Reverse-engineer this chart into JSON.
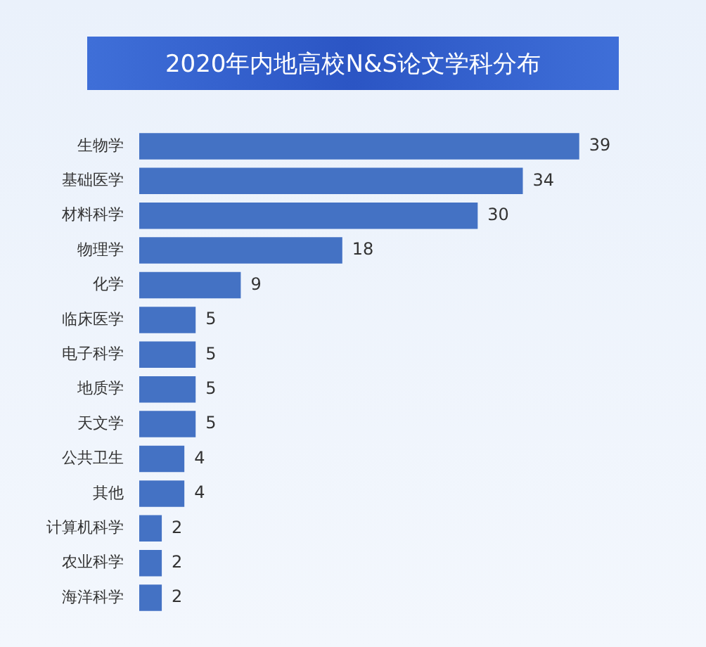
{
  "chart_data": {
    "type": "bar",
    "orientation": "horizontal",
    "title": "2020年内地高校N&S论文学科分布",
    "categories": [
      "生物学",
      "基础医学",
      "材料科学",
      "物理学",
      "化学",
      "临床医学",
      "电子科学",
      "地质学",
      "天文学",
      "公共卫生",
      "其他",
      "计算机科学",
      "农业科学",
      "海洋科学"
    ],
    "values": [
      39,
      34,
      30,
      18,
      9,
      5,
      5,
      5,
      5,
      4,
      4,
      2,
      2,
      2
    ],
    "color": "#4472c4",
    "data_labels": true,
    "legend": false,
    "tick_labels": "y"
  }
}
